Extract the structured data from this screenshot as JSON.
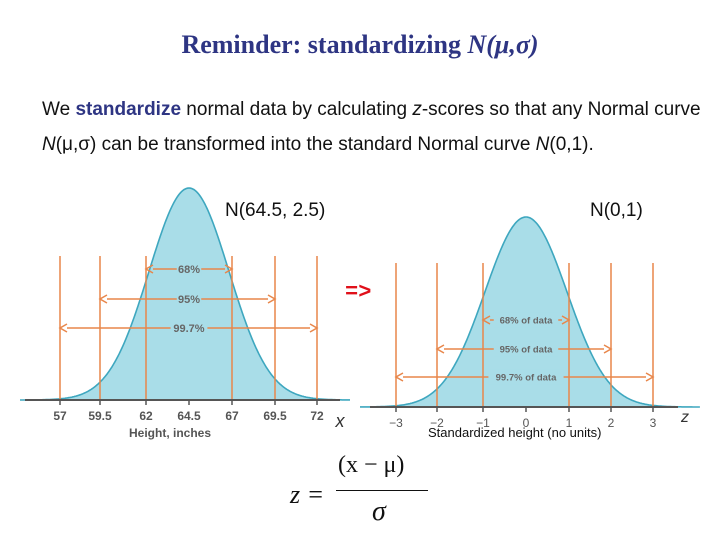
{
  "title": {
    "text": "Reminder: standardizing ",
    "symbol": "N(μ,σ)"
  },
  "paragraph": {
    "part1": "We ",
    "highlight": "standardize",
    "part2": " normal data by calculating ",
    "z_word": "z",
    "part3": "-scores so that any Normal curve ",
    "n1": "N",
    "part4": "(μ,σ) can be transformed into the standard Normal curve ",
    "n2": "N",
    "part5": "(0,1)."
  },
  "left_curve": {
    "label": "N(64.5, 2.5)",
    "bands": [
      "68%",
      "95%",
      "99.7%"
    ],
    "ticks": [
      "57",
      "59.5",
      "62",
      "64.5",
      "67",
      "69.5",
      "72"
    ],
    "axis_title": "Height, inches",
    "axis_var": "x"
  },
  "right_curve": {
    "label": "N(0,1)",
    "bands": [
      "68% of data",
      "95% of data",
      "99.7% of data"
    ],
    "ticks": [
      "−3",
      "−2",
      "−1",
      "0",
      "1",
      "2",
      "3"
    ],
    "axis_title": "Standardized height (no units)",
    "axis_var": "z"
  },
  "arrow": "=>",
  "formula": {
    "lhs": "z =",
    "numerator": "(x − μ)",
    "denominator": "σ"
  },
  "colors": {
    "title": "#2e3583",
    "highlight": "#2e3583",
    "fill": "#a9dde8",
    "curve": "#3ea7bf",
    "guides": "#e8864a",
    "band_text": "#666666",
    "arrow": "#e0101a"
  }
}
